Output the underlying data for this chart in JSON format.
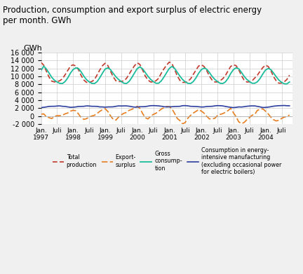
{
  "title": "Production, consumption and export surplus of electric energy\nper month. GWh",
  "ylabel": "GWh",
  "ylim": [
    -2000,
    16000
  ],
  "yticks": [
    -2000,
    0,
    2000,
    4000,
    6000,
    8000,
    10000,
    12000,
    14000,
    16000
  ],
  "bg_color": "#f0f0f0",
  "plot_bg_color": "#ffffff",
  "line_colors": {
    "production": "#c0392b",
    "export": "#e67e22",
    "gross": "#1abc9c",
    "consumption": "#2c3e9e"
  },
  "legend": [
    {
      "label": "Total\nproduction",
      "color": "#c0392b",
      "ls": "dashed"
    },
    {
      "label": "Export-\nsurplus",
      "color": "#e67e22",
      "ls": "dashed"
    },
    {
      "label": "Gross\nconsump-\ntion",
      "color": "#1abc9c",
      "ls": "solid"
    },
    {
      "label": "Consumption in energy-\nintensive manufacturing\n(excluding occasional power\nfor electric boilers)",
      "color": "#2c3e9e",
      "ls": "solid"
    }
  ]
}
